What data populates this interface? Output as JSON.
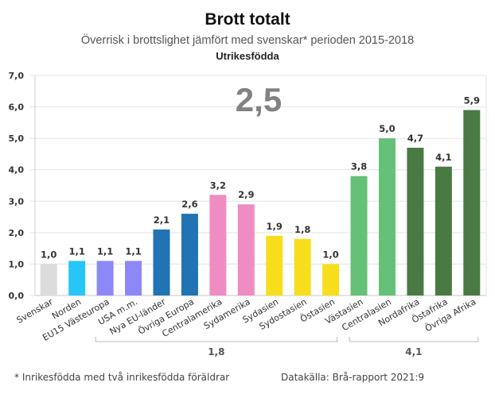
{
  "chart_data": {
    "type": "bar",
    "title": "Brott totalt",
    "subtitle": "Överrisk i brottslighet jämfört med svenskar* perioden 2015-2018",
    "subtitle2": "Utrikesfödda",
    "xlabel": "",
    "ylabel": "",
    "ylim": [
      0,
      7
    ],
    "yticks": [
      "0,0",
      "1,0",
      "2,0",
      "3,0",
      "4,0",
      "5,0",
      "6,0",
      "7,0"
    ],
    "grid": true,
    "legend": "none",
    "categories": [
      "Svenskar",
      "Norden",
      "EU15 Västeuropa",
      "USA m.m.",
      "Nya EU-länder",
      "Övriga Europa",
      "Centralamerika",
      "Sydamerika",
      "Sydasien",
      "Sydostasien",
      "Östasien",
      "Västasien",
      "Centralasien",
      "Nordafrika",
      "Östafrika",
      "Övriga Afrika"
    ],
    "values": [
      1.0,
      1.1,
      1.1,
      1.1,
      2.1,
      2.6,
      3.2,
      2.9,
      1.9,
      1.8,
      1.0,
      3.8,
      5.0,
      4.7,
      4.1,
      5.9
    ],
    "value_labels": [
      "1,0",
      "1,1",
      "1,1",
      "1,1",
      "2,1",
      "2,6",
      "3,2",
      "2,9",
      "1,9",
      "1,8",
      "1,0",
      "3,8",
      "5,0",
      "4,7",
      "4,1",
      "5,9"
    ],
    "colors": [
      "#DCDCDC",
      "#26C6F9",
      "#8C88F8",
      "#8C88F8",
      "#2074B3",
      "#2074B3",
      "#F08CC4",
      "#F08CC4",
      "#F7DE1C",
      "#F7DE1C",
      "#F7DE1C",
      "#64C177",
      "#64C177",
      "#4A7A44",
      "#4A7A44",
      "#4A7A44"
    ],
    "annotations": {
      "overall": "2,5",
      "groups": [
        {
          "label": "1,8",
          "from_category": "EU15 Västeuropa",
          "to_category": "Östasien"
        },
        {
          "label": "4,1",
          "from_category": "Västasien",
          "to_category": "Övriga Afrika"
        }
      ]
    }
  },
  "footer": {
    "footnote": "* Inrikesfödda med två inrikesfödda föräldrar",
    "source": "Datakälla: Brå-rapport 2021:9"
  }
}
